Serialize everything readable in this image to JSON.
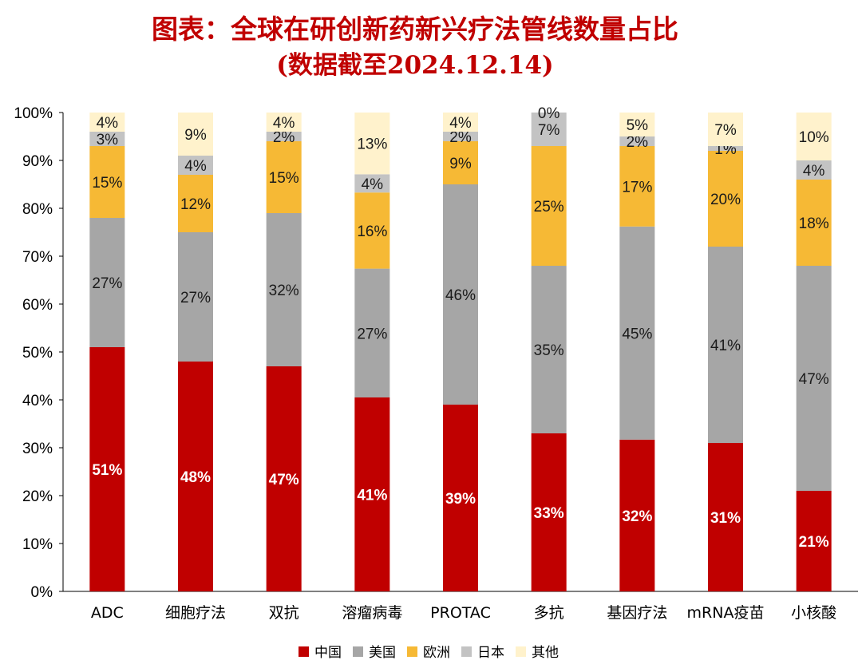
{
  "chart_data": {
    "type": "bar",
    "stacked": true,
    "title": "图表：全球在研创新药新兴疗法管线数量占比",
    "subtitle": "(数据截至2024.12.14)",
    "categories": [
      "ADC",
      "细胞疗法",
      "双抗",
      "溶瘤病毒",
      "PROTAC",
      "多抗",
      "基因疗法",
      "mRNA疫苗",
      "小核酸"
    ],
    "yticks": [
      "0%",
      "10%",
      "20%",
      "30%",
      "40%",
      "50%",
      "60%",
      "70%",
      "80%",
      "90%",
      "100%"
    ],
    "ylim": [
      0,
      100
    ],
    "legend_position": "bottom",
    "series": [
      {
        "name": "中国",
        "color": "#c00000",
        "values": [
          51,
          48,
          47,
          40.5,
          39,
          33,
          31.7,
          31,
          21
        ],
        "labels": [
          "51%",
          "48%",
          "47%",
          "41%",
          "39%",
          "33%",
          "32%",
          "31%",
          "21%"
        ]
      },
      {
        "name": "美国",
        "color": "#a6a6a6",
        "values": [
          27,
          27,
          32,
          26.9,
          46,
          35,
          44.5,
          41,
          47
        ],
        "labels": [
          "27%",
          "27%",
          "32%",
          "27%",
          "46%",
          "35%",
          "45%",
          "41%",
          "47%"
        ]
      },
      {
        "name": "欧洲",
        "color": "#f6b935",
        "values": [
          15,
          12,
          15,
          15.9,
          9,
          25,
          16.8,
          20,
          18
        ],
        "labels": [
          "15%",
          "12%",
          "15%",
          "16%",
          "9%",
          "25%",
          "17%",
          "20%",
          "18%"
        ]
      },
      {
        "name": "日本",
        "color": "#c3c3c3",
        "values": [
          3,
          4,
          2,
          3.8,
          2,
          7,
          2,
          1,
          4
        ],
        "labels": [
          "3%",
          "4%",
          "2%",
          "4%",
          "2%",
          "7%",
          "2%",
          "1%",
          "4%"
        ]
      },
      {
        "name": "其他",
        "color": "#fff2cc",
        "values": [
          4,
          9,
          4,
          12.9,
          4,
          0,
          5,
          7,
          10
        ],
        "labels": [
          "4%",
          "9%",
          "4%",
          "13%",
          "4%",
          "0%",
          "5%",
          "7%",
          "10%"
        ]
      }
    ]
  }
}
